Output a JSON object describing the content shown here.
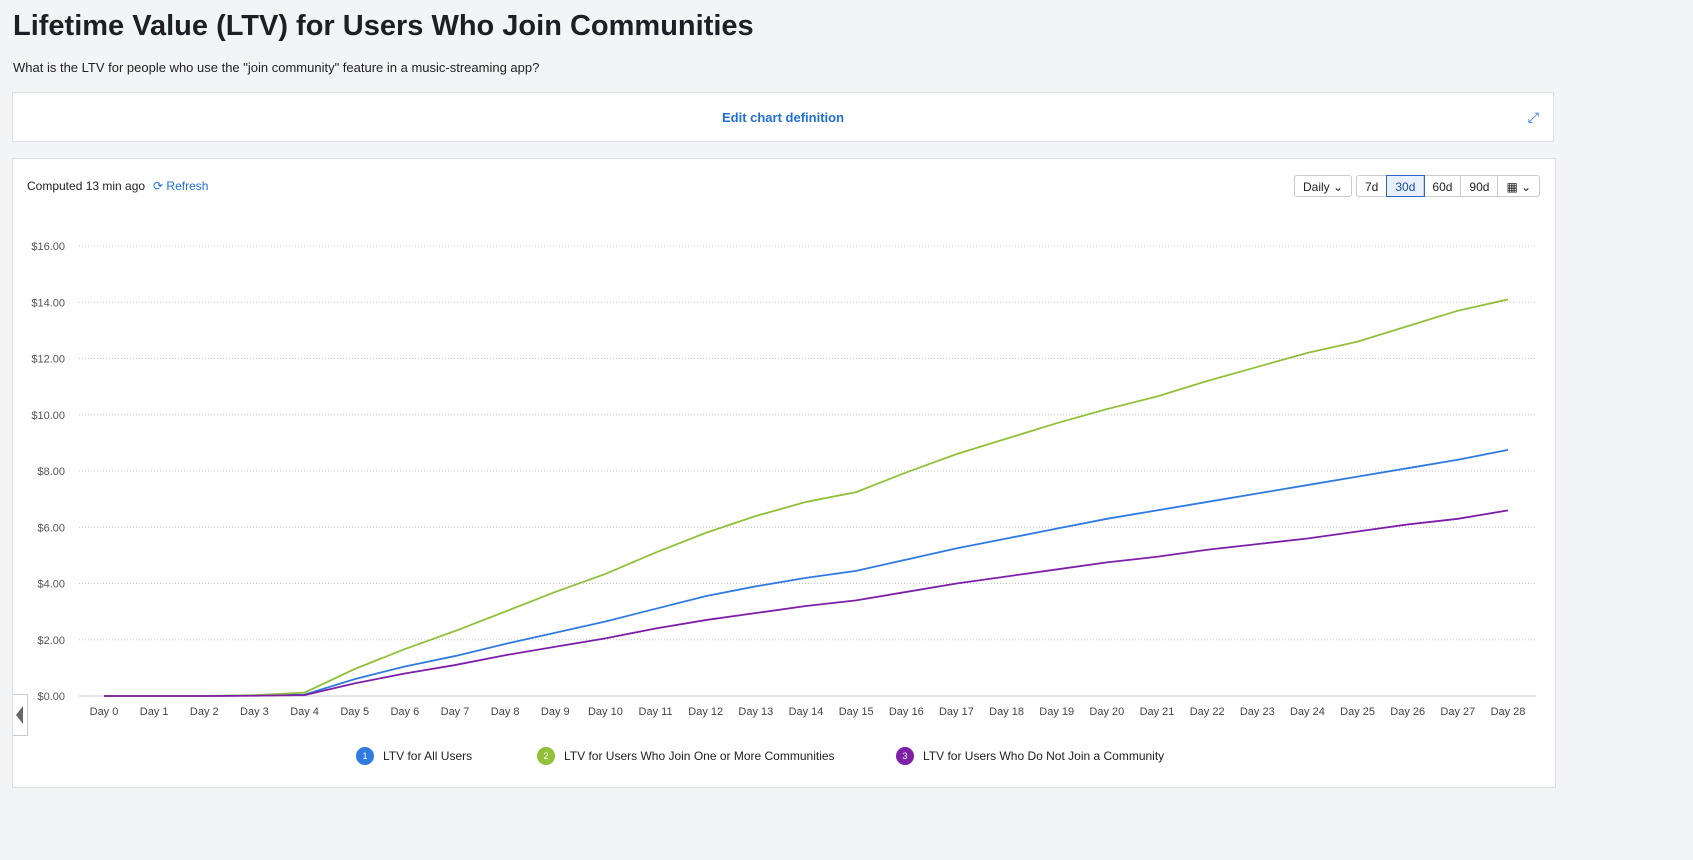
{
  "title": "Lifetime Value (LTV) for Users Who Join Communities",
  "subtitle": "What is the LTV for people who use the \"join community\" feature in a music-streaming app?",
  "edit_label": "Edit chart definition",
  "computed": "Computed 13 min ago",
  "refresh": "Refresh",
  "interval": "Daily",
  "ranges": [
    "7d",
    "30d",
    "60d",
    "90d"
  ],
  "active_range": "30d",
  "icons": {
    "expand": "expand-icon",
    "refresh": "refresh-icon",
    "calendar": "calendar-icon"
  },
  "chart_data": {
    "type": "line",
    "categories": [
      "Day 0",
      "Day 1",
      "Day 2",
      "Day 3",
      "Day 4",
      "Day 5",
      "Day 6",
      "Day 7",
      "Day 8",
      "Day 9",
      "Day 10",
      "Day 11",
      "Day 12",
      "Day 13",
      "Day 14",
      "Day 15",
      "Day 16",
      "Day 17",
      "Day 18",
      "Day 19",
      "Day 20",
      "Day 21",
      "Day 22",
      "Day 23",
      "Day 24",
      "Day 25",
      "Day 26",
      "Day 27",
      "Day 28"
    ],
    "ylim": [
      0,
      16
    ],
    "yticks": [
      "$0.00",
      "$2.00",
      "$4.00",
      "$6.00",
      "$8.00",
      "$10.00",
      "$12.00",
      "$14.00",
      "$16.00"
    ],
    "grid": true,
    "legend": "bottom",
    "series": [
      {
        "name": "LTV for All Users",
        "badge": "1",
        "color": "#2f7be0",
        "values": [
          0,
          0,
          0,
          0.02,
          0.05,
          0.6,
          1.05,
          1.42,
          1.85,
          2.25,
          2.65,
          3.1,
          3.55,
          3.9,
          4.2,
          4.45,
          4.85,
          5.25,
          5.6,
          5.95,
          6.3,
          6.6,
          6.9,
          7.2,
          7.5,
          7.8,
          8.1,
          8.4,
          8.75
        ]
      },
      {
        "name": "LTV for Users Who Join One or More Communities",
        "badge": "2",
        "color": "#92c03a",
        "values": [
          0,
          0,
          0,
          0.03,
          0.12,
          0.96,
          1.67,
          2.31,
          3.0,
          3.7,
          4.34,
          5.1,
          5.8,
          6.4,
          6.9,
          7.25,
          7.95,
          8.6,
          9.15,
          9.7,
          10.2,
          10.65,
          11.2,
          11.7,
          12.2,
          12.6,
          13.15,
          13.7,
          14.1
        ]
      },
      {
        "name": "LTV for Users Who Do Not Join a Community",
        "badge": "3",
        "color": "#7e1fa8",
        "values": [
          0,
          0,
          0,
          0.01,
          0.03,
          0.45,
          0.8,
          1.1,
          1.45,
          1.75,
          2.05,
          2.4,
          2.7,
          2.95,
          3.2,
          3.4,
          3.7,
          4.0,
          4.25,
          4.5,
          4.75,
          4.95,
          5.2,
          5.4,
          5.6,
          5.85,
          6.1,
          6.3,
          6.6
        ]
      }
    ]
  }
}
